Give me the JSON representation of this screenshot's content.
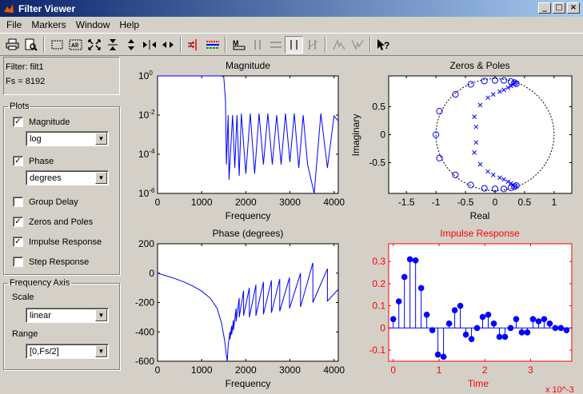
{
  "window": {
    "title": "Filter Viewer"
  },
  "menu": [
    "File",
    "Markers",
    "Window",
    "Help"
  ],
  "info": {
    "filter": "Filter: filt1",
    "fs": "Fs = 8192"
  },
  "plots_panel": {
    "legend": "Plots",
    "magnitude": {
      "label": "Magnitude",
      "checked": true,
      "select": "log"
    },
    "phase": {
      "label": "Phase",
      "checked": true,
      "select": "degrees"
    },
    "group_delay": {
      "label": "Group Delay",
      "checked": false
    },
    "zeros_poles": {
      "label": "Zeros and Poles",
      "checked": true
    },
    "impulse": {
      "label": "Impulse Response",
      "checked": true
    },
    "step": {
      "label": "Step Response",
      "checked": false
    }
  },
  "freq_axis": {
    "legend": "Frequency Axis",
    "scale_label": "Scale",
    "scale_value": "linear",
    "range_label": "Range",
    "range_value": "[0,Fs/2]"
  },
  "colors": {
    "line": "#0000ff",
    "impulse_title": "#ff0000"
  },
  "chart_data": [
    {
      "type": "line",
      "title": "Magnitude",
      "xlabel": "Frequency",
      "ylabel": "",
      "yscale": "log",
      "xlim": [
        0,
        4096
      ],
      "ylim": [
        1e-06,
        1
      ],
      "xticks": [
        "0",
        "1000",
        "2000",
        "3000",
        "4000"
      ],
      "yticks": [
        "10^-6",
        "10^-4",
        "10^-2",
        "10^0"
      ],
      "series": [
        {
          "x": [
            0,
            1400,
            1450,
            1500,
            1540,
            1560,
            1600,
            1620,
            1700,
            1750,
            1800,
            1850,
            1900,
            2000,
            2100,
            2200,
            2300,
            2400,
            2500,
            2600,
            2700,
            2800,
            2900,
            3000,
            3100,
            3200,
            3300,
            3400,
            3550,
            3700,
            3850,
            4000,
            4096
          ],
          "y": [
            1,
            1,
            1,
            0.9,
            0.05,
            3e-05,
            0.01,
            5e-06,
            0.01,
            2e-05,
            0.01,
            8e-06,
            0.012,
            1e-05,
            0.012,
            1e-05,
            0.012,
            3e-05,
            0.012,
            3e-05,
            0.01,
            3e-05,
            0.012,
            4e-05,
            0.012,
            2e-05,
            0.01,
            3e-05,
            1e-06,
            0.012,
            2e-05,
            0.009,
            0.005
          ]
        }
      ]
    },
    {
      "type": "scatter",
      "title": "Zeros & Poles",
      "xlabel": "Real",
      "ylabel": "Imaginary",
      "xlim": [
        -1.8,
        1.3
      ],
      "ylim": [
        -1.05,
        1.05
      ],
      "xticks": [
        "-1.5",
        "-1",
        "-0.5",
        "0",
        "0.5",
        "1"
      ],
      "yticks": [
        "-0.5",
        "0",
        "0.5"
      ],
      "zeros": [
        [
          -1,
          0
        ],
        [
          -0.94,
          0.42
        ],
        [
          -0.94,
          -0.42
        ],
        [
          -0.67,
          0.72
        ],
        [
          -0.67,
          -0.72
        ],
        [
          -0.41,
          0.9
        ],
        [
          -0.41,
          -0.9
        ],
        [
          -0.18,
          0.96
        ],
        [
          -0.18,
          -0.96
        ],
        [
          0,
          0.97
        ],
        [
          0,
          -0.97
        ],
        [
          0.15,
          0.97
        ],
        [
          0.15,
          -0.97
        ],
        [
          0.27,
          0.95
        ],
        [
          0.27,
          -0.95
        ],
        [
          0.33,
          0.93
        ],
        [
          0.33,
          -0.93
        ],
        [
          0.36,
          0.91
        ],
        [
          0.36,
          -0.91
        ]
      ],
      "poles": [
        [
          -0.35,
          0.32
        ],
        [
          -0.35,
          -0.32
        ],
        [
          -0.32,
          0.14
        ],
        [
          -0.32,
          -0.14
        ],
        [
          -0.25,
          0.53
        ],
        [
          -0.25,
          -0.53
        ],
        [
          -0.12,
          0.66
        ],
        [
          -0.12,
          -0.66
        ],
        [
          -0.03,
          0.72
        ],
        [
          -0.03,
          -0.72
        ],
        [
          0.08,
          0.77
        ],
        [
          0.08,
          -0.77
        ],
        [
          0.15,
          0.8
        ],
        [
          0.15,
          -0.8
        ],
        [
          0.22,
          0.84
        ],
        [
          0.22,
          -0.84
        ],
        [
          0.27,
          0.87
        ],
        [
          0.27,
          -0.87
        ],
        [
          0.31,
          0.9
        ],
        [
          0.31,
          -0.9
        ],
        [
          0.34,
          0.92
        ],
        [
          0.34,
          -0.92
        ]
      ]
    },
    {
      "type": "line",
      "title": "Phase (degrees)",
      "xlabel": "Frequency",
      "ylabel": "",
      "xlim": [
        0,
        4096
      ],
      "ylim": [
        -600,
        200
      ],
      "xticks": [
        "0",
        "1000",
        "2000",
        "3000",
        "4000"
      ],
      "yticks": [
        "-600",
        "-400",
        "-200",
        "0",
        "200"
      ],
      "series": [
        {
          "x": [
            0,
            200,
            400,
            600,
            800,
            1000,
            1200,
            1350,
            1450,
            1520,
            1560,
            1580,
            1600,
            1640,
            1640,
            1680,
            1680,
            1720,
            1720,
            1780,
            1780,
            1850,
            1850,
            1950,
            1950,
            2080,
            2080,
            2230,
            2230,
            2400,
            2400,
            2580,
            2580,
            2770,
            2770,
            2990,
            2990,
            3240,
            3240,
            3520,
            3520,
            3850,
            3850,
            4096
          ],
          "y": [
            0,
            -18,
            -38,
            -60,
            -88,
            -122,
            -172,
            -240,
            -340,
            -460,
            -560,
            -600,
            -490,
            -400,
            -450,
            -360,
            -420,
            -320,
            -390,
            -240,
            -330,
            -170,
            -300,
            -120,
            -290,
            -100,
            -300,
            -80,
            -290,
            -60,
            -280,
            -50,
            -270,
            -40,
            -260,
            -30,
            -240,
            0,
            -230,
            70,
            -200,
            30,
            -190,
            -110
          ]
        }
      ]
    },
    {
      "type": "scatter",
      "title": "Impulse Response",
      "xlabel": "Time",
      "ylabel": "",
      "xlim": [
        -0.0001,
        0.0039
      ],
      "ylim": [
        -0.15,
        0.38
      ],
      "xticks": [
        "0",
        "1",
        "2",
        "3"
      ],
      "yticks": [
        "-0.1",
        "0",
        "0.1",
        "0.2",
        "0.3"
      ],
      "multiplier": "x 10^-3",
      "stem": true,
      "x": [
        0,
        0.000122,
        0.000244,
        0.000366,
        0.000488,
        0.00061,
        0.000732,
        0.000854,
        0.000976,
        0.0010986,
        0.0012207,
        0.0013428,
        0.0014648,
        0.0015869,
        0.001709,
        0.0018311,
        0.0019531,
        0.0020752,
        0.0021973,
        0.0023193,
        0.0024414,
        0.0025635,
        0.0026855,
        0.0028076,
        0.0029297,
        0.0030518,
        0.0031738,
        0.0032959,
        0.003418,
        0.0035401,
        0.0036621,
        0.0037842
      ],
      "values": [
        0.04,
        0.12,
        0.23,
        0.31,
        0.305,
        0.18,
        0.06,
        -0.01,
        -0.12,
        -0.13,
        0.02,
        0.08,
        0.1,
        -0.03,
        -0.05,
        0.0,
        0.05,
        0.06,
        0.02,
        -0.04,
        -0.04,
        0.0,
        0.04,
        -0.02,
        -0.02,
        0.04,
        0.03,
        0.04,
        0.02,
        0.0,
        0.0,
        -0.01
      ]
    }
  ]
}
